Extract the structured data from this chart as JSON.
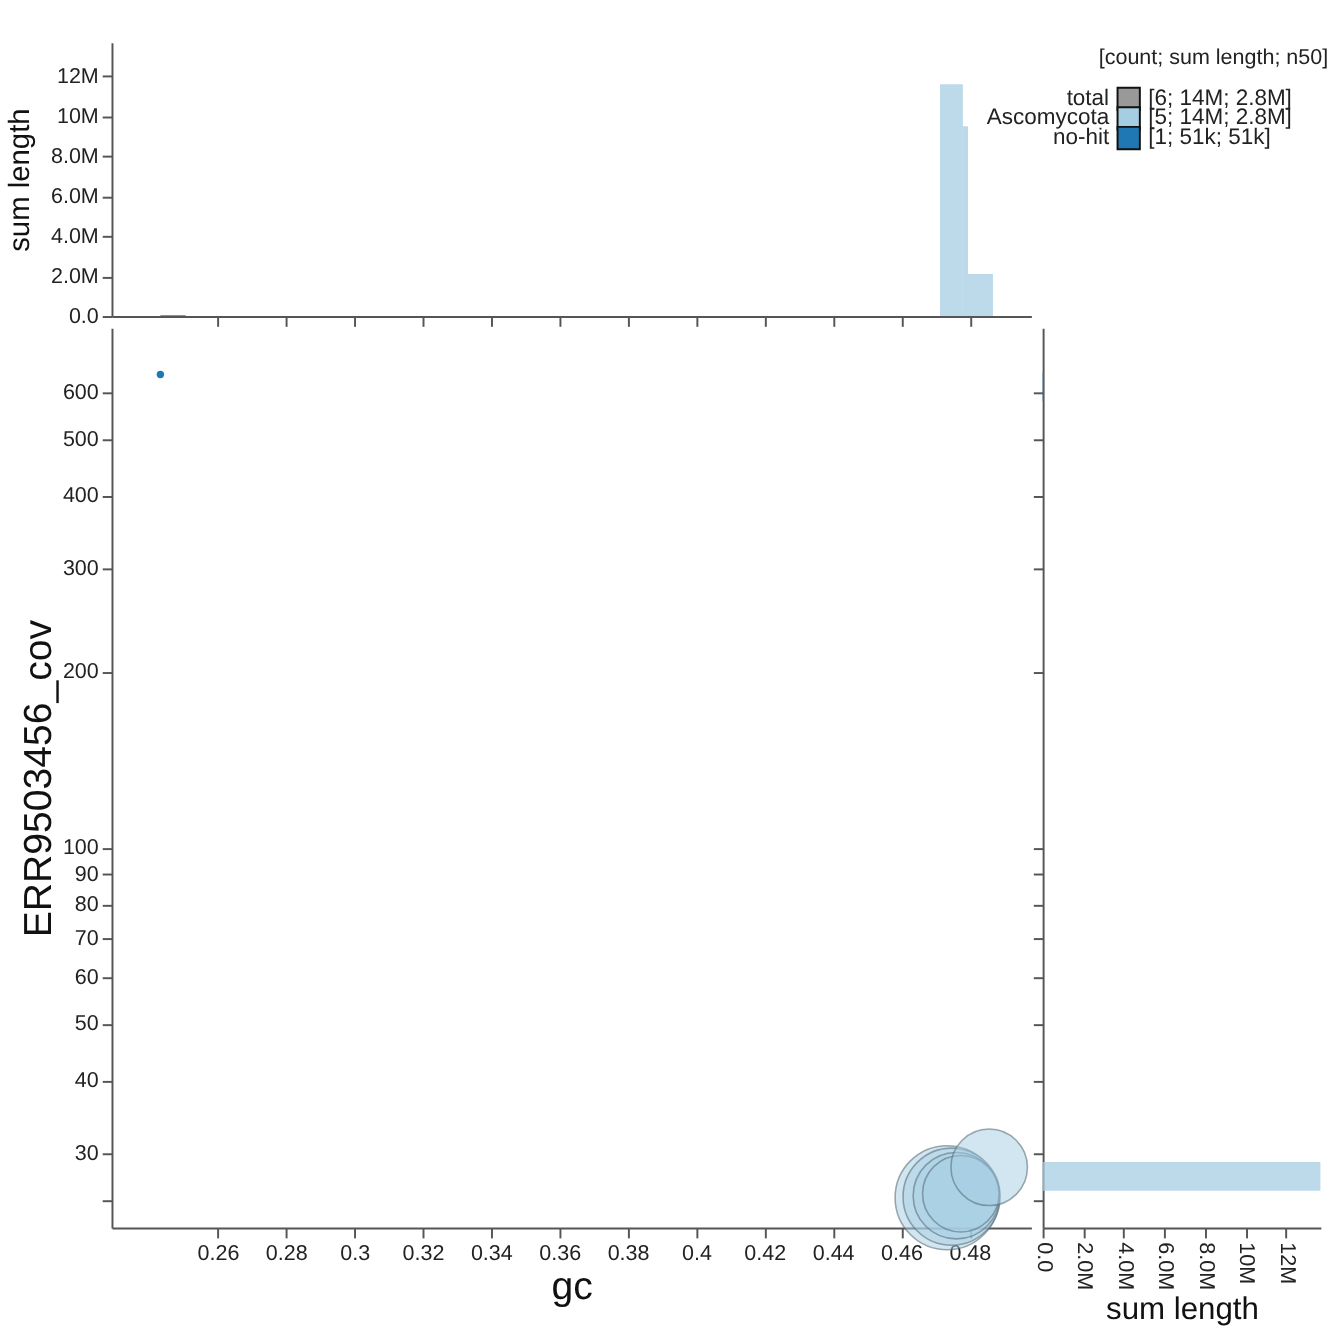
{
  "chart_data": [
    {
      "type": "histogram",
      "ylabel": "sum length",
      "bins": [
        0.2433,
        0.2507,
        0.4714,
        0.4781,
        0.4796,
        0.4869
      ],
      "xlim": [
        0.229,
        0.498
      ],
      "xticks": [
        0.26,
        0.28,
        0.3,
        0.32,
        0.34,
        0.36,
        0.38,
        0.4,
        0.42,
        0.44,
        0.46,
        0.48
      ],
      "ylim": [
        0,
        13700000
      ],
      "yticks": [
        {
          "value": 0,
          "label": "0.0"
        },
        {
          "value": 2000000,
          "label": "2.0M"
        },
        {
          "value": 4000000,
          "label": "4.0M"
        },
        {
          "value": 6000000,
          "label": "6.0M"
        },
        {
          "value": 8000000,
          "label": "8.0M"
        },
        {
          "value": 10000000,
          "label": "10M"
        },
        {
          "value": 12000000,
          "label": "12M"
        }
      ],
      "tick_labels": "y",
      "series": [
        {
          "color": "#a6cee3",
          "values": [
            null,
            null,
            11600000,
            9500000,
            2100000
          ]
        },
        {
          "color": "#1f78b4",
          "values": [
            50000,
            null,
            null,
            null,
            null
          ]
        }
      ]
    },
    {
      "type": "bubble",
      "xlabel": "gc",
      "ylabel": "ERR9503456_cov",
      "log": "y",
      "xlim": [
        0.229,
        0.498
      ],
      "xticks": [
        0.26,
        0.28,
        {
          "value": 0.3,
          "label": "0.3"
        },
        0.32,
        0.34,
        0.36,
        0.38,
        {
          "value": 0.4,
          "label": "0.4"
        },
        0.42,
        0.44,
        0.46,
        0.48
      ],
      "ylim": [
        22.4,
        774
      ],
      "yticks": [
        {
          "value": 25,
          "label": null
        },
        30,
        40,
        50,
        60,
        70,
        80,
        90,
        100,
        200,
        300,
        400,
        500,
        600
      ],
      "legend": "top right",
      "legend_title": "[count; sum length; n50]",
      "annotations": [
        "[6; 14M; 2.8M]",
        "[5; 14M; 2.8M]",
        "[1; 51k; 51k]"
      ],
      "series": [
        {
          "name": "total",
          "color": "#999999"
        },
        {
          "name": "Ascomycota",
          "color": "#a6cee3",
          "x": [
            0.4735,
            0.4748,
            0.4762,
            0.4775,
            0.4858
          ],
          "values": [
            25.2,
            25.3,
            25.4,
            25.6,
            28.4
          ],
          "sizes": [
            1,
            0.87,
            0.69,
            0.54,
            0.54
          ]
        },
        {
          "name": "no-hit",
          "color": "#1f78b4",
          "x": [
            0.2433
          ],
          "values": [
            644
          ],
          "sizes": [
            0.005
          ]
        }
      ]
    },
    {
      "type": "histogram",
      "orientation": "horizontal",
      "xlabel": "sum length",
      "log": "y",
      "bins": [
        25.9,
        29.0,
        580,
        650
      ],
      "ylim": [
        22.4,
        774
      ],
      "yticks": [
        25,
        30,
        40,
        50,
        60,
        70,
        80,
        90,
        100,
        200,
        300,
        400,
        500,
        600
      ],
      "xlim": [
        0,
        13700000
      ],
      "xticks": [
        {
          "value": 0,
          "label": "0.0"
        },
        {
          "value": 2000000,
          "label": "2.0M"
        },
        {
          "value": 4000000,
          "label": "4.0M"
        },
        {
          "value": 6000000,
          "label": "6.0M"
        },
        {
          "value": 8000000,
          "label": "8.0M"
        },
        {
          "value": 10000000,
          "label": "10M"
        },
        {
          "value": 12000000,
          "label": "12M"
        }
      ],
      "tick_labels": "x",
      "series": [
        {
          "color": "#a6cee3",
          "values": [
            13700000,
            null,
            null
          ]
        },
        {
          "color": "#1f78b4",
          "values": [
            null,
            null,
            50000
          ]
        }
      ]
    }
  ]
}
